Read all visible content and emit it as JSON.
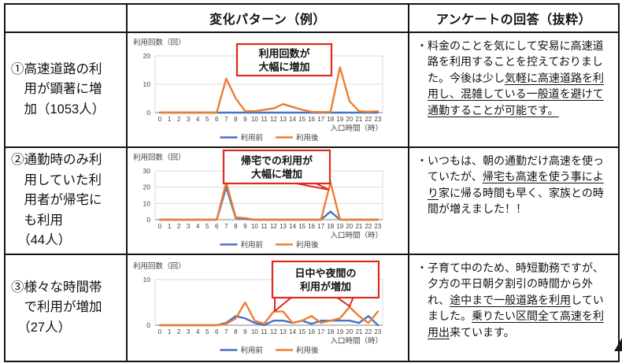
{
  "colors": {
    "series_before": "#4472C4",
    "series_after": "#ED7D31",
    "callout_border": "#DE2A20",
    "grid": "#D9D9D9",
    "axis": "#9E9E9E",
    "tick_text": "#404040"
  },
  "header": {
    "pattern_col": "変化パターン（例）",
    "survey_col": "アンケートの回答（抜粋）"
  },
  "rows": [
    {
      "category": "①高速道路の利\n　用が顕著に増\n　加（1053人）",
      "survey_segments": [
        {
          "text": "・料金のことを気にして安易に高速道路を利用することを控えておりました。今後は少し",
          "underline": false
        },
        {
          "text": "気軽に高速道路を利用し、混雑している一般道を避けて通勤することが可能です。",
          "underline": true
        }
      ]
    },
    {
      "category": "②通勤時のみ利\n　用していた利\n　用者が帰宅に\n　も利用\n　（44人）",
      "survey_segments": [
        {
          "text": "・いつもは、朝の通勤だけ高速を使っていたが、",
          "underline": false
        },
        {
          "text": "帰宅も高速を使う事により",
          "underline": true
        },
        {
          "text": "家に帰る時間も早く、家族との時間が増えました！！",
          "underline": false
        }
      ]
    },
    {
      "category": "③様々な時間帯\n　で利用が増加\n　（27人）",
      "survey_segments": [
        {
          "text": "・子育て中のため、時短勤務ですが、夕方の平日朝夕割引の時間から外れ、",
          "underline": false
        },
        {
          "text": "途中まで一般道路を利用",
          "underline": true
        },
        {
          "text": "していました。",
          "underline": false
        },
        {
          "text": "乗りたい区間全て高速を利用出",
          "underline": true
        },
        {
          "text": "来ています。",
          "underline": false
        }
      ]
    }
  ],
  "chart_data": [
    {
      "type": "line",
      "ylabel": "利用回数（回）",
      "xlabel": "入口時間（時）",
      "x": [
        0,
        1,
        2,
        3,
        4,
        5,
        6,
        7,
        8,
        9,
        10,
        11,
        12,
        13,
        14,
        15,
        16,
        17,
        18,
        19,
        20,
        21,
        22,
        23
      ],
      "ylim": [
        0,
        20
      ],
      "yticks": [
        0,
        10,
        20
      ],
      "grid": true,
      "legend_position": "bottom",
      "series": [
        {
          "name": "利用前",
          "color_key": "series_before",
          "values": [
            0,
            0,
            0,
            0,
            0,
            0,
            0,
            0,
            0,
            0,
            0,
            0,
            0,
            0,
            0,
            0,
            0,
            0,
            0,
            0,
            0,
            0,
            0,
            0
          ]
        },
        {
          "name": "利用後",
          "color_key": "series_after",
          "values": [
            0,
            0,
            0,
            0,
            0,
            0,
            0,
            12,
            5,
            0.5,
            0.5,
            1,
            1.5,
            3,
            2,
            1,
            0.3,
            0.2,
            0.2,
            16,
            4,
            0.5,
            0.3,
            0.5
          ]
        }
      ],
      "annotation": "利用回数が\n大幅に増加"
    },
    {
      "type": "line",
      "ylabel": "利用回数（回）",
      "xlabel": "入口時間（時）",
      "x": [
        0,
        1,
        2,
        3,
        4,
        5,
        6,
        7,
        8,
        9,
        10,
        11,
        12,
        13,
        14,
        15,
        16,
        17,
        18,
        19,
        20,
        21,
        22,
        23
      ],
      "ylim": [
        0,
        30
      ],
      "yticks": [
        0,
        10,
        20,
        30
      ],
      "grid": true,
      "legend_position": "bottom",
      "series": [
        {
          "name": "利用前",
          "color_key": "series_before",
          "values": [
            0,
            0,
            0,
            0,
            0,
            0,
            0,
            20,
            1,
            0.5,
            0,
            0,
            0,
            0,
            0,
            0,
            0,
            0,
            5,
            0,
            0,
            0,
            0,
            0
          ]
        },
        {
          "name": "利用後",
          "color_key": "series_after",
          "values": [
            0,
            0,
            0,
            0,
            0,
            0,
            0,
            23,
            1.5,
            1,
            0,
            0,
            0,
            0,
            0,
            0,
            0,
            0,
            23,
            0,
            0,
            0,
            0,
            0
          ]
        }
      ],
      "annotation": "帰宅での利用が\n大幅に増加"
    },
    {
      "type": "line",
      "ylabel": "利用回数（回）",
      "xlabel": "入口時間（時）",
      "x": [
        0,
        1,
        2,
        3,
        4,
        5,
        6,
        7,
        8,
        9,
        10,
        11,
        12,
        13,
        14,
        15,
        16,
        17,
        18,
        19,
        20,
        21,
        22,
        23
      ],
      "ylim": [
        0,
        10
      ],
      "yticks": [
        0,
        10
      ],
      "grid": true,
      "legend_position": "bottom",
      "series": [
        {
          "name": "利用前",
          "color_key": "series_before",
          "values": [
            0,
            0,
            0,
            0,
            0,
            0,
            0,
            0.5,
            2,
            1.5,
            0.5,
            0,
            1,
            1,
            0.5,
            1,
            0.3,
            1,
            1,
            1,
            1,
            0.5,
            2,
            0
          ]
        },
        {
          "name": "利用後",
          "color_key": "series_after",
          "values": [
            0,
            0,
            0,
            0,
            0,
            0,
            0,
            0.3,
            1.5,
            5,
            1,
            0.3,
            3,
            3,
            0.5,
            1,
            2,
            0.5,
            1,
            1.5,
            4,
            2,
            0.5,
            3
          ]
        }
      ],
      "annotation": "日中や夜間の\n利用が増加"
    }
  ]
}
